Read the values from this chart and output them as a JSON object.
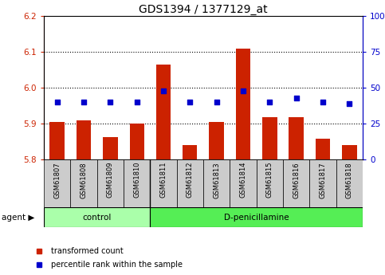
{
  "title": "GDS1394 / 1377129_at",
  "samples": [
    "GSM61807",
    "GSM61808",
    "GSM61809",
    "GSM61810",
    "GSM61811",
    "GSM61812",
    "GSM61813",
    "GSM61814",
    "GSM61815",
    "GSM61816",
    "GSM61817",
    "GSM61818"
  ],
  "transformed_count": [
    5.905,
    5.908,
    5.862,
    5.9,
    6.065,
    5.84,
    5.905,
    6.108,
    5.918,
    5.918,
    5.858,
    5.84
  ],
  "percentile_rank": [
    40,
    40,
    40,
    40,
    48,
    40,
    40,
    48,
    40,
    43,
    40,
    39
  ],
  "control_count": 4,
  "treatment_count": 8,
  "control_label": "control",
  "treatment_label": "D-penicillamine",
  "agent_label": "agent",
  "ylim_left": [
    5.8,
    6.2
  ],
  "ylim_right": [
    0,
    100
  ],
  "yticks_left": [
    5.8,
    5.9,
    6.0,
    6.1,
    6.2
  ],
  "yticks_right": [
    0,
    25,
    50,
    75,
    100
  ],
  "ytick_labels_right": [
    "0",
    "25",
    "50",
    "75",
    "100%"
  ],
  "bar_color": "#cc2200",
  "dot_color": "#0000cc",
  "control_bg": "#aaffaa",
  "treatment_bg": "#55ee55",
  "sample_bg": "#cccccc",
  "bar_bottom": 5.8,
  "bar_width": 0.55,
  "legend_bar_label": "transformed count",
  "legend_dot_label": "percentile rank within the sample",
  "title_fontsize": 10,
  "tick_fontsize": 7.5,
  "label_fontsize": 7.5
}
